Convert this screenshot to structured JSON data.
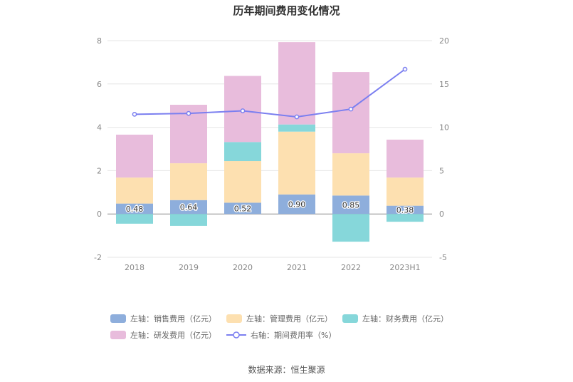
{
  "title": "历年期间费用变化情况",
  "source": "数据来源：恒生聚源",
  "colors": {
    "sales": "#8eaedc",
    "mgmt": "#fde0b0",
    "finance": "#86d7da",
    "rd": "#e8bcdc",
    "rate": "#7b7ff0"
  },
  "legend": [
    {
      "label": "左轴：销售费用（亿元）",
      "key": "sales",
      "type": "bar"
    },
    {
      "label": "左轴：管理费用（亿元）",
      "key": "mgmt",
      "type": "bar"
    },
    {
      "label": "左轴：财务费用（亿元）",
      "key": "finance",
      "type": "bar"
    },
    {
      "label": "左轴：研发费用（亿元）",
      "key": "rd",
      "type": "bar"
    },
    {
      "label": "右轴：期间费用率（%）",
      "key": "rate",
      "type": "line"
    }
  ],
  "chart_data": {
    "type": "bar",
    "stacked": true,
    "title": "历年期间费用变化情况",
    "categories": [
      "2018",
      "2019",
      "2020",
      "2021",
      "2022",
      "2023H1"
    ],
    "left_axis": {
      "min": -2,
      "max": 8,
      "ticks": [
        "-2",
        "0",
        "2",
        "4",
        "6",
        "8"
      ]
    },
    "right_axis": {
      "min": -5,
      "max": 20,
      "ticks": [
        "-5",
        "0",
        "5",
        "10",
        "15",
        "20"
      ]
    },
    "series": [
      {
        "name": "左轴：销售费用（亿元）",
        "key": "sales",
        "axis": "left",
        "values": [
          0.48,
          0.64,
          0.52,
          0.9,
          0.85,
          0.38
        ],
        "labels": [
          "0.48",
          "0.64",
          "0.52",
          "0.90",
          "0.85",
          "0.38"
        ]
      },
      {
        "name": "左轴：管理费用（亿元）",
        "key": "mgmt",
        "axis": "left",
        "values": [
          1.2,
          1.7,
          1.92,
          2.9,
          1.95,
          1.3
        ]
      },
      {
        "name": "左轴：财务费用（亿元）",
        "key": "finance",
        "axis": "left",
        "values": [
          -0.45,
          -0.55,
          0.88,
          0.33,
          -1.28,
          -0.36
        ]
      },
      {
        "name": "左轴：研发费用（亿元）",
        "key": "rd",
        "axis": "left",
        "values": [
          1.98,
          2.7,
          3.05,
          3.8,
          3.75,
          1.75
        ]
      },
      {
        "name": "右轴：期间费用率（%）",
        "key": "rate",
        "axis": "right",
        "type": "line",
        "values": [
          11.5,
          11.6,
          11.9,
          11.2,
          12.1,
          16.7
        ]
      }
    ]
  }
}
